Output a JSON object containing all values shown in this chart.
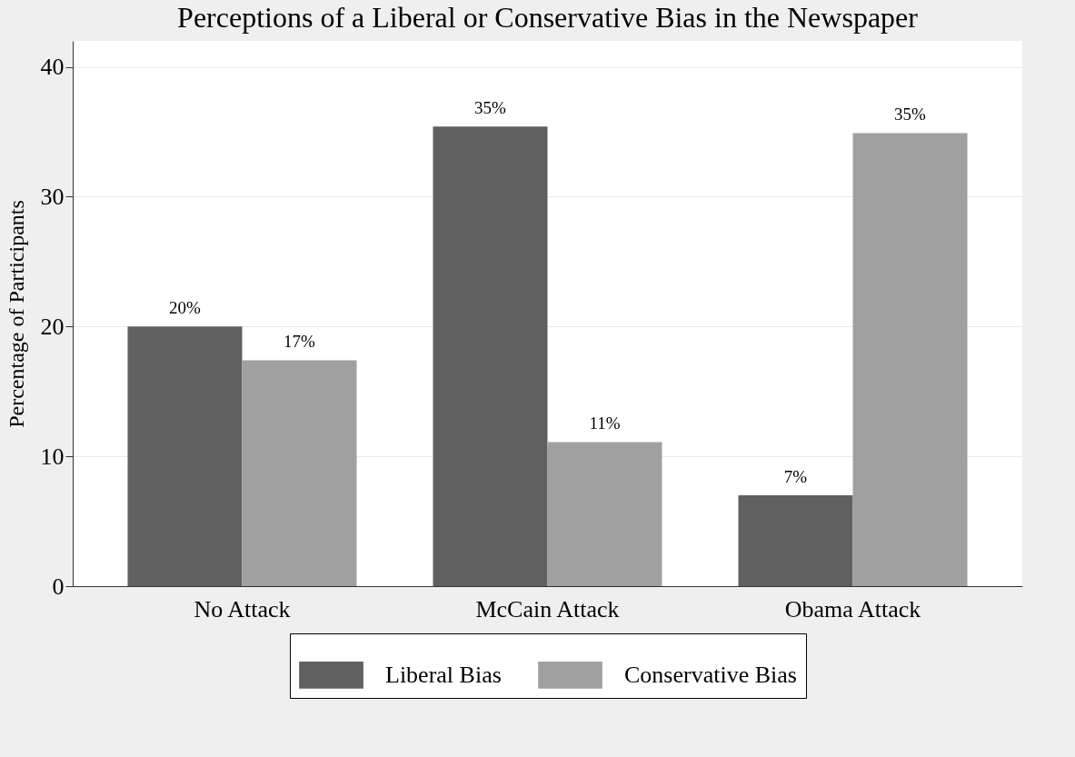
{
  "chart_data": {
    "type": "bar",
    "title": "Perceptions of a Liberal or Conservative Bias in the Newspaper",
    "ylabel": "Percentage of Participants",
    "categories": [
      "No Attack",
      "McCain Attack",
      "Obama Attack"
    ],
    "series": [
      {
        "name": "Liberal Bias",
        "color": "#606060",
        "values": [
          20.0,
          35.4,
          7.0
        ],
        "value_labels": [
          "20%",
          "35%",
          "7%"
        ]
      },
      {
        "name": "Conservative Bias",
        "color": "#a0a0a0",
        "values": [
          17.4,
          11.1,
          34.9
        ],
        "value_labels": [
          "17%",
          "11%",
          "35%"
        ]
      }
    ],
    "ylim": [
      0,
      42
    ],
    "yticks": [
      0,
      10,
      20,
      30,
      40
    ],
    "grid": "y",
    "legend": "bottom"
  }
}
